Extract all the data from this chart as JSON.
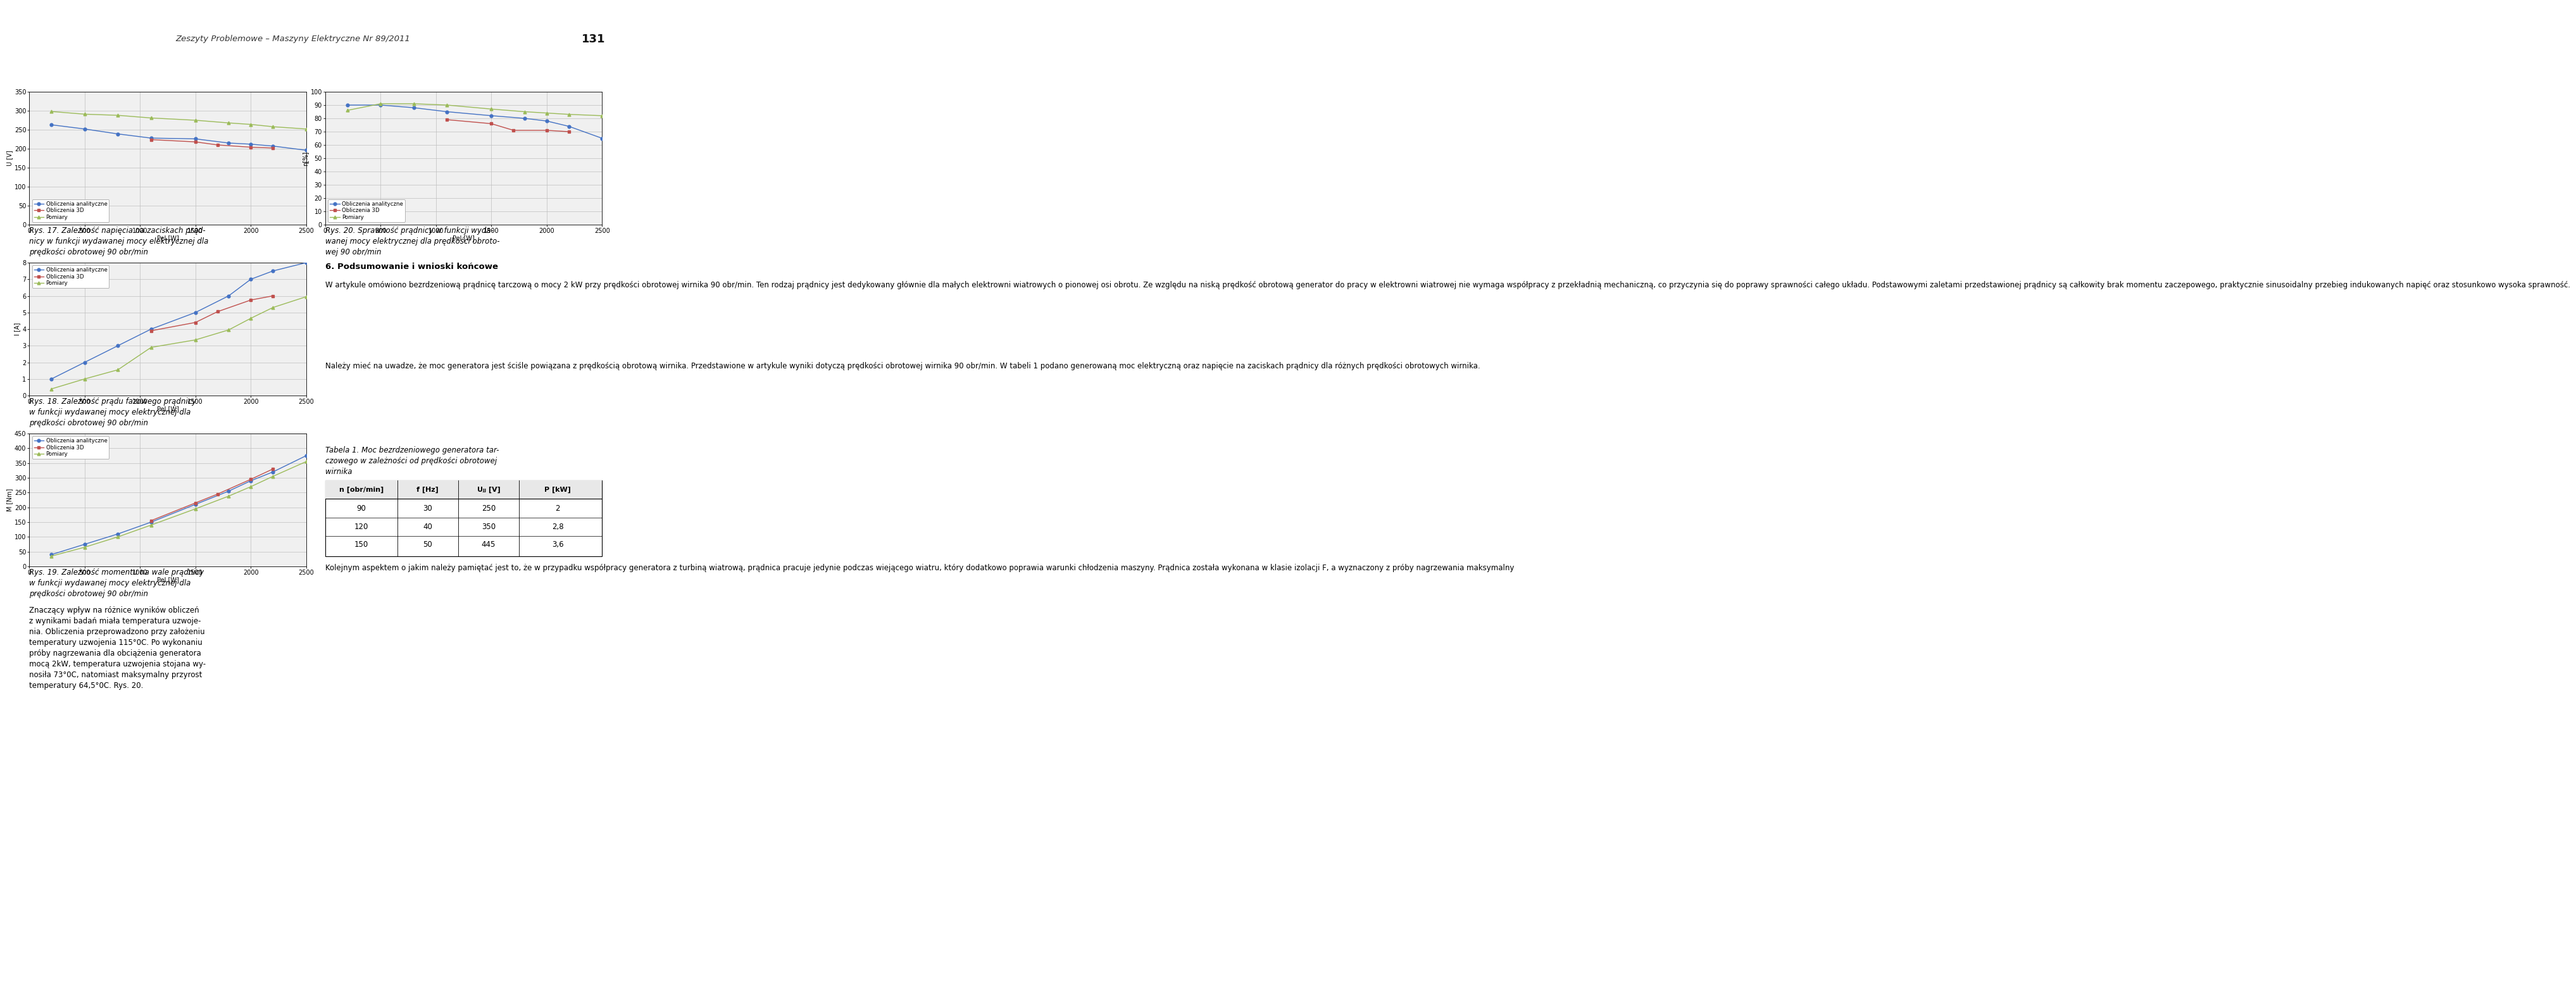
{
  "page_header": "Zeszyty Problemowe – Maszyny Elektryczne Nr 89/2011",
  "page_number": "131",
  "chart1": {
    "xlabel": "Pel [W]",
    "ylabel": "U [V]",
    "xlim": [
      0,
      2500
    ],
    "ylim": [
      0,
      350
    ],
    "xticks": [
      0,
      500,
      1000,
      1500,
      2000,
      2500
    ],
    "yticks": [
      0,
      50,
      100,
      150,
      200,
      250,
      300,
      350
    ],
    "series": {
      "Obliczenia analityczne": {
        "x": [
          200,
          500,
          800,
          1100,
          1500,
          1800,
          2000,
          2200,
          2500
        ],
        "y": [
          263,
          252,
          239,
          228,
          226,
          215,
          212,
          207,
          196
        ],
        "color": "#4472C4",
        "marker": "o"
      },
      "Obliczenia 3D": {
        "x": [
          1100,
          1500,
          1700,
          2000,
          2200
        ],
        "y": [
          224,
          218,
          210,
          204,
          202
        ],
        "color": "#C0504D",
        "marker": "s"
      },
      "Pomiary": {
        "x": [
          200,
          500,
          800,
          1100,
          1500,
          1800,
          2000,
          2200,
          2500
        ],
        "y": [
          298,
          291,
          288,
          281,
          275,
          268,
          264,
          258,
          252
        ],
        "color": "#9BBB59",
        "marker": "^"
      }
    },
    "legend_loc": "lower left"
  },
  "chart1_caption": "Rys. 17. Zależność napięcia na zaciskach prąd-\nnicy w funkcji wydawanej mocy elektrycznej dla\nprędkości obrotowej 90 obr/min",
  "chart2": {
    "xlabel": "Pel [W]",
    "ylabel": "η[%]",
    "xlim": [
      0,
      2500
    ],
    "ylim": [
      0.0,
      100.0
    ],
    "xticks": [
      0,
      500,
      1000,
      1500,
      2000,
      2500
    ],
    "yticks": [
      0.0,
      10.0,
      20.0,
      30.0,
      40.0,
      50.0,
      60.0,
      70.0,
      80.0,
      90.0,
      100.0
    ],
    "series": {
      "Obliczenia analityczne": {
        "x": [
          200,
          500,
          800,
          1100,
          1500,
          1800,
          2000,
          2200,
          2500
        ],
        "y": [
          90,
          90,
          88,
          85,
          82,
          80,
          78,
          74,
          65
        ],
        "color": "#4472C4",
        "marker": "o"
      },
      "Obliczenia 3D": {
        "x": [
          1100,
          1500,
          1700,
          2000,
          2200
        ],
        "y": [
          79,
          76,
          71,
          71,
          70
        ],
        "color": "#C0504D",
        "marker": "s"
      },
      "Pomiary": {
        "x": [
          200,
          500,
          800,
          1100,
          1500,
          1800,
          2000,
          2200,
          2500
        ],
        "y": [
          86,
          91,
          91,
          90,
          87,
          85,
          84,
          83,
          82
        ],
        "color": "#9BBB59",
        "marker": "^"
      }
    },
    "legend_loc": "lower left"
  },
  "chart2_caption": "Rys. 20. Sprawność prądnicy w funkcji wyda-\nwanej mocy elektrycznej dla prędkości obroto-\nwej 90 obr/min",
  "chart3": {
    "xlabel": "Pel [W]",
    "ylabel": "I [A]",
    "xlim": [
      0,
      2500
    ],
    "ylim": [
      0,
      8
    ],
    "xticks": [
      0,
      500,
      1000,
      1500,
      2000,
      2500
    ],
    "yticks": [
      0,
      1,
      2,
      3,
      4,
      5,
      6,
      7,
      8
    ],
    "series": {
      "Obliczenia analityczne": {
        "x": [
          200,
          500,
          800,
          1100,
          1500,
          1800,
          2000,
          2200,
          2500
        ],
        "y": [
          1.0,
          2.0,
          3.0,
          4.0,
          5.0,
          6.0,
          7.0,
          7.5,
          8.0
        ],
        "color": "#4472C4",
        "marker": "o"
      },
      "Obliczenia 3D": {
        "x": [
          1100,
          1500,
          1700,
          2000,
          2200
        ],
        "y": [
          3.9,
          4.4,
          5.05,
          5.75,
          6.0
        ],
        "color": "#C0504D",
        "marker": "s"
      },
      "Pomiary": {
        "x": [
          200,
          500,
          800,
          1100,
          1500,
          1800,
          2000,
          2200,
          2500
        ],
        "y": [
          0.4,
          1.0,
          1.55,
          2.9,
          3.35,
          3.95,
          4.65,
          5.3,
          5.95
        ],
        "color": "#9BBB59",
        "marker": "^"
      }
    },
    "legend_loc": "upper left"
  },
  "chart3_caption": "Rys. 18. Zależność prądu fazowego prądnicy\nw funkcji wydawanej mocy elektrycznej dla\nprędkości obrotowej 90 obr/min",
  "chart4": {
    "xlabel": "Pel [W]",
    "ylabel": "M [Nm]",
    "xlim": [
      0,
      2500
    ],
    "ylim": [
      0,
      450
    ],
    "xticks": [
      0,
      500,
      1000,
      1500,
      2000,
      2500
    ],
    "yticks": [
      0,
      50,
      100,
      150,
      200,
      250,
      300,
      350,
      400,
      450
    ],
    "series": {
      "Obliczenia analityczne": {
        "x": [
          200,
          500,
          800,
          1100,
          1500,
          1800,
          2000,
          2200,
          2500
        ],
        "y": [
          40,
          75,
          110,
          150,
          210,
          255,
          290,
          320,
          375
        ],
        "color": "#4472C4",
        "marker": "o"
      },
      "Obliczenia 3D": {
        "x": [
          1100,
          1500,
          1700,
          2000,
          2200
        ],
        "y": [
          155,
          215,
          245,
          295,
          330
        ],
        "color": "#C0504D",
        "marker": "s"
      },
      "Pomiary": {
        "x": [
          200,
          500,
          800,
          1100,
          1500,
          1800,
          2000,
          2200,
          2500
        ],
        "y": [
          35,
          65,
          100,
          140,
          195,
          238,
          270,
          305,
          355
        ],
        "color": "#9BBB59",
        "marker": "^"
      }
    },
    "legend_loc": "upper left"
  },
  "chart4_caption": "Rys. 19. Zależność momentu na wale prądnicy\nw funkcji wydawanej mocy elektrycznej dla\nprędkości obrotowej 90 obr/min",
  "section6_title": "6. Podsumowanie i wnioski końcowe",
  "section6_para1": "W artykule omówiono bezrdzeniową prądnicę tarczową o mocy 2 kW przy prędkości obrotowej wirnika 90 obr/min. Ten rodzaj prądnicy jest dedykowany głównie dla małych elektrowni wiatrowych o pionowej osi obrotu. Ze względu na niską prędkość obrotową generator do pracy w elektrowni wiatrowej nie wymaga współpracy z przekładnią mechaniczną, co przyczynia się do poprawy sprawności całego układu. Podstawowymi zaletami przedstawionej prądnicy są całkowity brak momentu zaczepowego, praktycznie sinusoidalny przebieg indukowanych napięć oraz stosunkowo wysoka sprawność.",
  "section6_para2": "Należy mieć na uwadze, że moc generatora jest ściśle powiązana z prędkością obrotową wirnika. Przedstawione w artykule wyniki dotyczą prędkości obrotowej wirnika 90 obr/min. W tabeli 1 podano generowaną moc elektryczną oraz napięcie na zaciskach prądnicy dla różnych prędkości obrotowych wirnika.",
  "table_caption": "Tabela 1. Moc bezrdzeniowego generatora tar-\nczowego w zależności od prędkości obrotowej\nwirnika",
  "table_headers": [
    "n [obr/min]",
    "f [Hz]",
    "Uⱼⱼ [V]",
    "P [kW]"
  ],
  "table_data": [
    [
      "90",
      "30",
      "250",
      "2"
    ],
    [
      "120",
      "40",
      "350",
      "2,8"
    ],
    [
      "150",
      "50",
      "445",
      "3,6"
    ]
  ],
  "bottom_right_text": "Kolejnym aspektem o jakim należy pamiętać jest to, że w przypadku współpracy generatora z turbiną wiatrową, prądnica pracuje jedynie podczas wiejącego wiatru, który dodatkowo poprawia warunki chłodzenia maszyny. Prądnica została wykonana w klasie izolacji F, a wyznaczony z próby nagrzewania maksymalny",
  "bottom_left_text": "Znaczący wpływ na różnice wyników obliczeń\nz wynikami badań miała temperatura uzwoje-\nnia. Obliczenia przeprowadzono przy założeniu\ntemperatury uzwojenia 115°0C. Po wykonaniu\npróby nagrzewania dla obciążenia generatora\nmocą 2kW, temperatura uzwojenia stojana wy-\nnosiła 73°0C, natomiast maksymalny przyrost\ntemperatury 64,5°0C. Rys. 20.",
  "bg_color": "#FFFFFF",
  "grid_color": "#BEBEBE",
  "chart_bg": "#F0F0F0"
}
